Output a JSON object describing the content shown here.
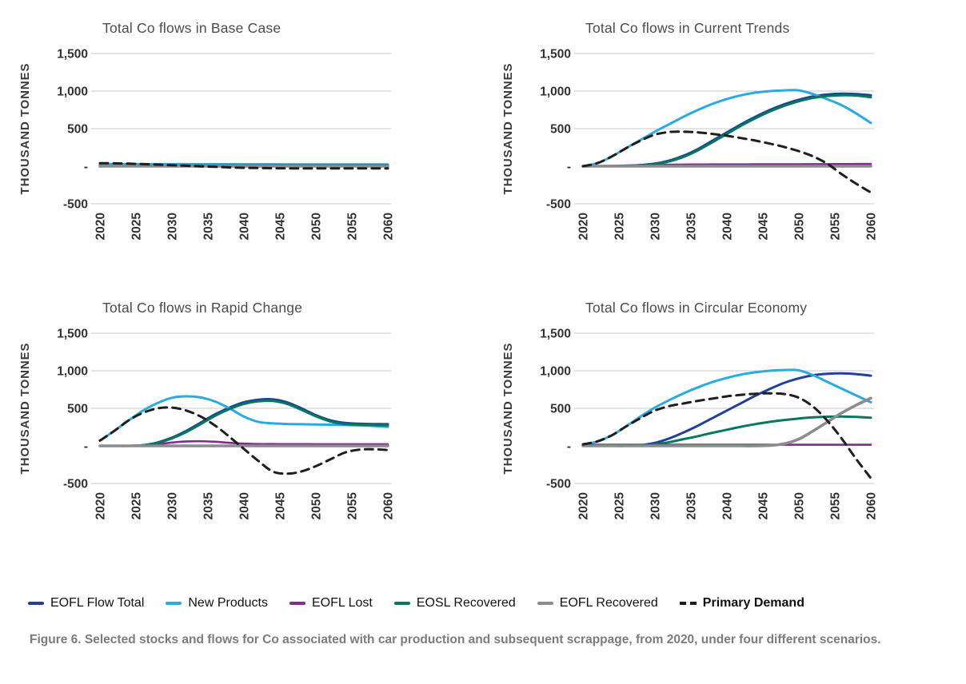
{
  "caption": {
    "text": "Figure 6. Selected stocks and flows for Co associated with car production and subsequent scrappage, from 2020, under four different scenarios."
  },
  "legend": {
    "items": [
      {
        "label": "EOFL Flow Total",
        "color": "#21409A",
        "style": "solid",
        "emphasis": false
      },
      {
        "label": "New Products",
        "color": "#29ABE2",
        "style": "solid",
        "emphasis": false
      },
      {
        "label": "EOFL Lost",
        "color": "#832A8E",
        "style": "solid",
        "emphasis": false
      },
      {
        "label": "EOSL Recovered",
        "color": "#00795F",
        "style": "solid",
        "emphasis": false
      },
      {
        "label": "EOFL Recovered",
        "color": "#8A8C8F",
        "style": "solid",
        "emphasis": false
      },
      {
        "label": "Primary Demand",
        "color": "#1E1E1E",
        "style": "dashed",
        "emphasis": true
      }
    ]
  },
  "chart_data": [
    {
      "type": "line",
      "title": "Total Co flows in Base Case",
      "ylabel": "THOUSAND TONNES",
      "xlim": [
        2020,
        2060
      ],
      "ylim": [
        -500,
        1500
      ],
      "grid": "horizontal",
      "x_ticks": [
        "2020",
        "2025",
        "2030",
        "2035",
        "2040",
        "2045",
        "2050",
        "2055",
        "2060"
      ],
      "y_ticks": [
        {
          "label": "1,500",
          "value": 1500,
          "grid": true
        },
        {
          "label": "1,000",
          "value": 1000,
          "grid": true
        },
        {
          "label": "500",
          "value": 500,
          "grid": true
        },
        {
          "label": "-",
          "value": 0,
          "grid": false
        },
        {
          "label": "-500",
          "value": -500,
          "grid": true
        }
      ],
      "x": [
        2020,
        2022,
        2024,
        2026,
        2028,
        2030,
        2032,
        2034,
        2036,
        2038,
        2040,
        2042,
        2044,
        2046,
        2048,
        2050,
        2052,
        2054,
        2056,
        2058,
        2060
      ],
      "series": [
        {
          "name": "EOFL Flow Total",
          "key": "eofl-flow-total",
          "color": "#21409A",
          "width": 3,
          "dash": null,
          "values": [
            5,
            7,
            9,
            11,
            13,
            14,
            15,
            16,
            17,
            17,
            18,
            18,
            18,
            19,
            19,
            19,
            19,
            19,
            19,
            19,
            19
          ]
        },
        {
          "name": "New Products",
          "key": "new-products",
          "color": "#29ABE2",
          "width": 3,
          "dash": null,
          "values": [
            28,
            28,
            28,
            28,
            28,
            28,
            28,
            27,
            27,
            27,
            26,
            26,
            26,
            25,
            25,
            25,
            24,
            24,
            24,
            23,
            23
          ]
        },
        {
          "name": "EOFL Lost",
          "key": "eofl-lost",
          "color": "#832A8E",
          "width": 2.6,
          "dash": null,
          "values": [
            2,
            2,
            2,
            2,
            2,
            2,
            2,
            2,
            2,
            2,
            2,
            2,
            2,
            2,
            2,
            2,
            2,
            2,
            2,
            2,
            2
          ]
        },
        {
          "name": "EOSL Recovered",
          "key": "eosl-recovered",
          "color": "#00795F",
          "width": 3,
          "dash": null,
          "values": [
            0,
            1,
            2,
            3,
            4,
            5,
            6,
            7,
            8,
            9,
            9,
            10,
            10,
            10,
            11,
            11,
            11,
            11,
            11,
            11,
            11
          ]
        },
        {
          "name": "EOFL Recovered",
          "key": "eofl-recovered",
          "color": "#8A8C8F",
          "width": 3.6,
          "dash": null,
          "values": [
            0,
            0,
            0,
            0,
            0,
            0,
            0,
            0,
            0,
            0,
            0,
            0,
            0,
            0,
            0,
            0,
            0,
            0,
            0,
            0,
            0
          ]
        },
        {
          "name": "Primary Demand",
          "key": "primary-demand",
          "color": "#1E1E1E",
          "width": 3,
          "dash": "10 7",
          "values": [
            40,
            38,
            34,
            28,
            21,
            14,
            6,
            -2,
            -9,
            -16,
            -21,
            -25,
            -27,
            -29,
            -30,
            -30,
            -30,
            -30,
            -30,
            -30,
            -30
          ]
        }
      ]
    },
    {
      "type": "line",
      "title": "Total Co flows in Current Trends",
      "ylabel": "THOUSAND TONNES",
      "xlim": [
        2020,
        2060
      ],
      "ylim": [
        -500,
        1500
      ],
      "grid": "horizontal",
      "x_ticks": [
        "2020",
        "2025",
        "2030",
        "2035",
        "2040",
        "2045",
        "2050",
        "2055",
        "2060"
      ],
      "y_ticks": [
        {
          "label": "1,500",
          "value": 1500,
          "grid": true
        },
        {
          "label": "1,000",
          "value": 1000,
          "grid": true
        },
        {
          "label": "500",
          "value": 500,
          "grid": true
        },
        {
          "label": "-",
          "value": 0,
          "grid": false
        },
        {
          "label": "-500",
          "value": -500,
          "grid": true
        }
      ],
      "x": [
        2020,
        2022,
        2024,
        2026,
        2028,
        2030,
        2032,
        2034,
        2036,
        2038,
        2040,
        2042,
        2044,
        2046,
        2048,
        2050,
        2052,
        2054,
        2056,
        2058,
        2060
      ],
      "series": [
        {
          "name": "EOFL Flow Total",
          "key": "eofl-flow-total",
          "color": "#21409A",
          "width": 3,
          "dash": null,
          "values": [
            0,
            0,
            0,
            5,
            15,
            35,
            75,
            140,
            230,
            340,
            450,
            560,
            660,
            750,
            825,
            885,
            930,
            955,
            965,
            960,
            945
          ]
        },
        {
          "name": "New Products",
          "key": "new-products",
          "color": "#29ABE2",
          "width": 3,
          "dash": null,
          "values": [
            0,
            40,
            130,
            240,
            350,
            460,
            560,
            660,
            750,
            830,
            895,
            945,
            980,
            1000,
            1010,
            1010,
            960,
            890,
            810,
            700,
            575
          ]
        },
        {
          "name": "EOFL Lost",
          "key": "eofl-lost",
          "color": "#832A8E",
          "width": 2.6,
          "dash": null,
          "values": [
            0,
            2,
            5,
            10,
            15,
            18,
            20,
            22,
            23,
            24,
            25,
            25,
            26,
            26,
            27,
            27,
            28,
            28,
            29,
            30,
            30
          ]
        },
        {
          "name": "EOSL Recovered",
          "key": "eosl-recovered",
          "color": "#00795F",
          "width": 3,
          "dash": null,
          "values": [
            0,
            0,
            0,
            3,
            10,
            28,
            65,
            125,
            212,
            320,
            430,
            540,
            640,
            730,
            805,
            865,
            910,
            935,
            945,
            940,
            918
          ]
        },
        {
          "name": "EOFL Recovered",
          "key": "eofl-recovered",
          "color": "#8A8C8F",
          "width": 3.6,
          "dash": null,
          "values": [
            0,
            0,
            0,
            0,
            0,
            0,
            0,
            0,
            0,
            0,
            0,
            0,
            0,
            0,
            0,
            0,
            0,
            0,
            0,
            0,
            0
          ]
        },
        {
          "name": "Primary Demand",
          "key": "primary-demand",
          "color": "#1E1E1E",
          "width": 3,
          "dash": "10 7",
          "values": [
            0,
            40,
            130,
            240,
            340,
            420,
            455,
            460,
            450,
            430,
            405,
            375,
            340,
            300,
            255,
            200,
            130,
            30,
            -110,
            -235,
            -350
          ]
        }
      ]
    },
    {
      "type": "line",
      "title": "Total Co flows in Rapid Change",
      "ylabel": "THOUSAND TONNES",
      "xlim": [
        2020,
        2060
      ],
      "ylim": [
        -500,
        1500
      ],
      "grid": "horizontal",
      "x_ticks": [
        "2020",
        "2025",
        "2030",
        "2035",
        "2040",
        "2045",
        "2050",
        "2055",
        "2060"
      ],
      "y_ticks": [
        {
          "label": "1,500",
          "value": 1500,
          "grid": true
        },
        {
          "label": "1,000",
          "value": 1000,
          "grid": true
        },
        {
          "label": "500",
          "value": 500,
          "grid": true
        },
        {
          "label": "-",
          "value": 0,
          "grid": false
        },
        {
          "label": "-500",
          "value": -500,
          "grid": true
        }
      ],
      "x": [
        2020,
        2022,
        2024,
        2026,
        2028,
        2030,
        2032,
        2034,
        2036,
        2038,
        2040,
        2042,
        2044,
        2046,
        2048,
        2050,
        2052,
        2054,
        2056,
        2058,
        2060
      ],
      "series": [
        {
          "name": "EOFL Flow Total",
          "key": "eofl-flow-total",
          "color": "#21409A",
          "width": 3,
          "dash": null,
          "values": [
            0,
            0,
            0,
            10,
            45,
            110,
            200,
            310,
            420,
            510,
            580,
            615,
            620,
            580,
            500,
            410,
            340,
            305,
            295,
            290,
            288
          ]
        },
        {
          "name": "New Products",
          "key": "new-products",
          "color": "#29ABE2",
          "width": 3,
          "dash": null,
          "values": [
            70,
            200,
            340,
            470,
            570,
            640,
            660,
            645,
            590,
            500,
            390,
            320,
            300,
            292,
            288,
            285,
            282,
            278,
            272,
            265,
            252
          ]
        },
        {
          "name": "EOFL Lost",
          "key": "eofl-lost",
          "color": "#832A8E",
          "width": 2.6,
          "dash": null,
          "values": [
            0,
            0,
            0,
            5,
            20,
            45,
            60,
            62,
            55,
            40,
            30,
            25,
            24,
            23,
            23,
            22,
            22,
            22,
            22,
            22,
            22
          ]
        },
        {
          "name": "EOSL Recovered",
          "key": "eosl-recovered",
          "color": "#00795F",
          "width": 3,
          "dash": null,
          "values": [
            0,
            0,
            0,
            8,
            38,
            100,
            185,
            290,
            400,
            490,
            558,
            593,
            598,
            558,
            480,
            395,
            325,
            292,
            283,
            278,
            273
          ]
        },
        {
          "name": "EOFL Recovered",
          "key": "eofl-recovered",
          "color": "#8A8C8F",
          "width": 3.6,
          "dash": null,
          "values": [
            0,
            0,
            0,
            0,
            0,
            0,
            0,
            0,
            0,
            0,
            0,
            0,
            0,
            0,
            0,
            0,
            0,
            0,
            0,
            0,
            0
          ]
        },
        {
          "name": "Primary Demand",
          "key": "primary-demand",
          "color": "#1E1E1E",
          "width": 3,
          "dash": "10 7",
          "values": [
            70,
            200,
            340,
            440,
            500,
            510,
            470,
            390,
            270,
            120,
            -40,
            -200,
            -340,
            -370,
            -340,
            -270,
            -180,
            -90,
            -50,
            -45,
            -55
          ]
        }
      ]
    },
    {
      "type": "line",
      "title": "Total Co flows in Circular Economy",
      "ylabel": "THOUSAND TONNES",
      "xlim": [
        2020,
        2060
      ],
      "ylim": [
        -500,
        1500
      ],
      "grid": "horizontal",
      "x_ticks": [
        "2020",
        "2025",
        "2030",
        "2035",
        "2040",
        "2045",
        "2050",
        "2055",
        "2060"
      ],
      "y_ticks": [
        {
          "label": "1,500",
          "value": 1500,
          "grid": true
        },
        {
          "label": "1,000",
          "value": 1000,
          "grid": true
        },
        {
          "label": "500",
          "value": 500,
          "grid": true
        },
        {
          "label": "-",
          "value": 0,
          "grid": false
        },
        {
          "label": "-500",
          "value": -500,
          "grid": true
        }
      ],
      "x": [
        2020,
        2022,
        2024,
        2026,
        2028,
        2030,
        2032,
        2034,
        2036,
        2038,
        2040,
        2042,
        2044,
        2046,
        2048,
        2050,
        2052,
        2054,
        2056,
        2058,
        2060
      ],
      "series": [
        {
          "name": "EOFL Flow Total",
          "key": "eofl-flow-total",
          "color": "#21409A",
          "width": 3,
          "dash": null,
          "values": [
            0,
            0,
            0,
            0,
            10,
            40,
            100,
            180,
            270,
            370,
            470,
            570,
            670,
            760,
            840,
            900,
            940,
            960,
            965,
            955,
            935
          ]
        },
        {
          "name": "New Products",
          "key": "new-products",
          "color": "#29ABE2",
          "width": 3,
          "dash": null,
          "values": [
            20,
            60,
            140,
            260,
            390,
            510,
            610,
            700,
            780,
            850,
            905,
            950,
            980,
            1000,
            1010,
            1005,
            940,
            850,
            760,
            670,
            580
          ]
        },
        {
          "name": "EOFL Lost",
          "key": "eofl-lost",
          "color": "#832A8E",
          "width": 2.6,
          "dash": null,
          "values": [
            15,
            15,
            15,
            15,
            15,
            15,
            15,
            15,
            15,
            15,
            15,
            15,
            15,
            15,
            15,
            15,
            15,
            15,
            15,
            15,
            15
          ]
        },
        {
          "name": "EOSL Recovered",
          "key": "eosl-recovered",
          "color": "#00795F",
          "width": 3,
          "dash": null,
          "values": [
            0,
            0,
            0,
            0,
            5,
            20,
            50,
            90,
            130,
            175,
            215,
            255,
            290,
            320,
            345,
            365,
            380,
            388,
            390,
            385,
            375
          ]
        },
        {
          "name": "EOFL Recovered",
          "key": "eofl-recovered",
          "color": "#8A8C8F",
          "width": 3.6,
          "dash": null,
          "values": [
            0,
            0,
            0,
            0,
            0,
            0,
            0,
            0,
            0,
            0,
            0,
            0,
            0,
            5,
            30,
            90,
            200,
            320,
            440,
            545,
            635
          ]
        },
        {
          "name": "Primary Demand",
          "key": "primary-demand",
          "color": "#1E1E1E",
          "width": 3,
          "dash": "10 7",
          "values": [
            20,
            60,
            140,
            260,
            370,
            470,
            530,
            565,
            600,
            630,
            660,
            680,
            695,
            700,
            690,
            640,
            520,
            330,
            90,
            -180,
            -430
          ]
        }
      ]
    }
  ]
}
